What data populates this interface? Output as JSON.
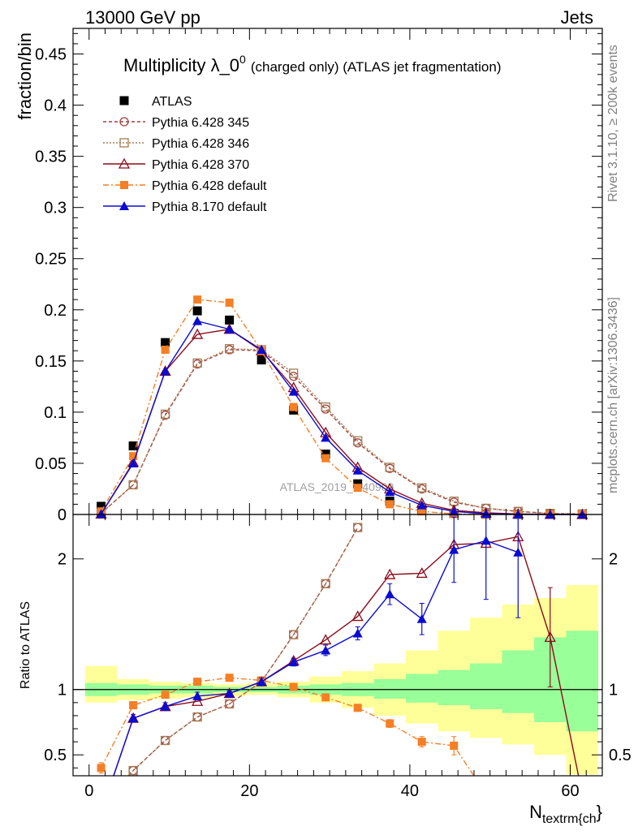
{
  "header": {
    "left": "13000 GeV pp",
    "right": "Jets"
  },
  "side_labels": {
    "rivet": "Rivet 3.1.10, ≥ 200k events",
    "mcplots": "mcplots.cern.ch [arXiv:1306.3436]"
  },
  "watermark": "ATLAS_2019_I740909",
  "chart_data": [
    {
      "type": "line",
      "panel": "main",
      "title": "Multiplicity λ_0⁰ (charged only) (ATLAS jet fragmentation)",
      "title_main": "Multiplicity λ_0",
      "title_sup": "0",
      "title_sub": "(charged only) (ATLAS jet fragmentation)",
      "ylabel": "fraction/bin",
      "xlim": [
        -2,
        64
      ],
      "ylim": [
        0,
        0.475
      ],
      "yticks": [
        0,
        0.05,
        0.1,
        0.15,
        0.2,
        0.25,
        0.3,
        0.35,
        0.4,
        0.45
      ],
      "ytick_labels": [
        "0",
        "0.05",
        "0.1",
        "0.15",
        "0.2",
        "0.25",
        "0.3",
        "0.35",
        "0.4",
        "0.45"
      ],
      "legend_position": "top-left",
      "x": [
        1.5,
        5.5,
        9.5,
        13.5,
        17.5,
        21.5,
        25.5,
        29.5,
        33.5,
        37.5,
        41.5,
        45.5,
        49.5,
        53.5,
        57.5,
        61.5
      ],
      "series": [
        {
          "name": "ATLAS",
          "color": "#000000",
          "marker": "square-filled",
          "values": [
            0.008,
            0.067,
            0.168,
            0.199,
            0.19,
            0.151,
            0.102,
            0.059,
            0.03,
            0.013,
            0.004,
            0.001,
            0.0003,
            0.0001,
            0.0,
            0.0
          ]
        },
        {
          "name": "Pythia 6.428 345",
          "color": "#a0413d",
          "marker": "circle-open",
          "dash": "4,3",
          "values": [
            0.001,
            0.029,
            0.097,
            0.147,
            0.161,
            0.16,
            0.135,
            0.103,
            0.07,
            0.045,
            0.025,
            0.012,
            0.006,
            0.003,
            0.001,
            0.0005
          ]
        },
        {
          "name": "Pythia 6.428 346",
          "color": "#a67c52",
          "marker": "square-open",
          "dash": "2,2",
          "values": [
            0.001,
            0.029,
            0.098,
            0.148,
            0.162,
            0.161,
            0.138,
            0.105,
            0.072,
            0.046,
            0.026,
            0.013,
            0.006,
            0.003,
            0.001,
            0.0005
          ]
        },
        {
          "name": "Pythia 6.428 370",
          "color": "#8b0a1a",
          "marker": "triangle-open",
          "values": [
            0.0005,
            0.051,
            0.14,
            0.176,
            0.181,
            0.16,
            0.124,
            0.08,
            0.046,
            0.025,
            0.011,
            0.004,
            0.0016,
            0.0005,
            0.0001,
            0.0
          ]
        },
        {
          "name": "Pythia 6.428 default",
          "color": "#f47f25",
          "marker": "square-filled",
          "dash": "7,3,2,3",
          "values": [
            0.003,
            0.057,
            0.161,
            0.21,
            0.207,
            0.16,
            0.105,
            0.055,
            0.026,
            0.01,
            0.003,
            0.0006,
            0.0001,
            0.0,
            0.0,
            0.0
          ]
        },
        {
          "name": "Pythia 8.170 default",
          "color": "#0b0bd1",
          "marker": "triangle-filled",
          "values": [
            0.0005,
            0.05,
            0.14,
            0.189,
            0.181,
            0.161,
            0.12,
            0.075,
            0.043,
            0.022,
            0.009,
            0.003,
            0.0007,
            0.0002,
            0.0,
            0.0
          ]
        }
      ]
    },
    {
      "type": "line",
      "panel": "ratio",
      "ylabel": "Ratio to ATLAS",
      "xlabel_main": "N",
      "xlabel_sub": "textrm{ch",
      "xlabel_tail": "}",
      "xlim": [
        -2,
        64
      ],
      "ylim": [
        0.34,
        2.34
      ],
      "xticks": [
        0,
        20,
        40,
        60
      ],
      "xtick_labels": [
        "0",
        "20",
        "40",
        "60"
      ],
      "yticks": [
        0.5,
        1,
        2
      ],
      "ytick_labels": [
        "0.5",
        "1",
        "2"
      ],
      "bins": [
        [
          -0.5,
          3.5
        ],
        [
          3.5,
          7.5
        ],
        [
          7.5,
          11.5
        ],
        [
          11.5,
          15.5
        ],
        [
          15.5,
          19.5
        ],
        [
          19.5,
          23.5
        ],
        [
          23.5,
          27.5
        ],
        [
          27.5,
          31.5
        ],
        [
          31.5,
          35.5
        ],
        [
          35.5,
          39.5
        ],
        [
          39.5,
          43.5
        ],
        [
          43.5,
          47.5
        ],
        [
          47.5,
          51.5
        ],
        [
          51.5,
          55.5
        ],
        [
          55.5,
          59.5
        ],
        [
          59.5,
          63.5
        ]
      ],
      "uncertainty_inner": [
        [
          0.95,
          1.05
        ],
        [
          0.96,
          1.04
        ],
        [
          0.97,
          1.03
        ],
        [
          0.97,
          1.03
        ],
        [
          0.98,
          1.02
        ],
        [
          0.98,
          1.02
        ],
        [
          0.97,
          1.03
        ],
        [
          0.96,
          1.04
        ],
        [
          0.95,
          1.05
        ],
        [
          0.93,
          1.08
        ],
        [
          0.9,
          1.12
        ],
        [
          0.88,
          1.15
        ],
        [
          0.85,
          1.2
        ],
        [
          0.82,
          1.3
        ],
        [
          0.75,
          1.4
        ],
        [
          0.68,
          1.45
        ]
      ],
      "uncertainty_outer": [
        [
          0.9,
          1.18
        ],
        [
          0.92,
          1.08
        ],
        [
          0.93,
          1.06
        ],
        [
          0.94,
          1.05
        ],
        [
          0.95,
          1.04
        ],
        [
          0.96,
          1.05
        ],
        [
          0.94,
          1.06
        ],
        [
          0.9,
          1.1
        ],
        [
          0.86,
          1.14
        ],
        [
          0.8,
          1.2
        ],
        [
          0.74,
          1.3
        ],
        [
          0.68,
          1.45
        ],
        [
          0.63,
          1.55
        ],
        [
          0.58,
          1.65
        ],
        [
          0.5,
          1.7
        ],
        [
          0.35,
          1.8
        ]
      ],
      "x": [
        1.5,
        5.5,
        9.5,
        13.5,
        17.5,
        21.5,
        25.5,
        29.5,
        33.5,
        37.5,
        41.5,
        45.5,
        49.5,
        53.5,
        57.5,
        61.5
      ],
      "series": [
        {
          "name": "Pythia 6.428 345",
          "color": "#a0413d",
          "marker": "circle-open",
          "dash": "4,3",
          "values": [
            0.12,
            0.38,
            0.61,
            0.79,
            0.89,
            1.06,
            1.42,
            1.81,
            2.24,
            null,
            null,
            null,
            null,
            null,
            null,
            null
          ]
        },
        {
          "name": "Pythia 6.428 346",
          "color": "#a67c52",
          "marker": "square-open",
          "dash": "2,2",
          "values": [
            0.12,
            0.38,
            0.61,
            0.79,
            0.89,
            1.06,
            1.42,
            1.81,
            2.24,
            null,
            null,
            null,
            null,
            null,
            null,
            null
          ]
        },
        {
          "name": "Pythia 6.428 370",
          "color": "#8b0a1a",
          "marker": "triangle-open",
          "values": [
            0.06,
            0.78,
            0.87,
            0.91,
            0.97,
            1.06,
            1.22,
            1.38,
            1.56,
            1.88,
            1.89,
            2.11,
            2.12,
            2.17,
            1.4,
            0.2
          ],
          "errors": [
            0,
            0,
            0,
            0,
            0,
            0,
            0,
            0,
            0,
            0,
            0,
            0,
            0,
            0,
            0.38,
            0
          ]
        },
        {
          "name": "Pythia 6.428 default",
          "color": "#f47f25",
          "marker": "square-filled",
          "dash": "7,3,2,3",
          "values": [
            0.4,
            0.88,
            0.96,
            1.06,
            1.09,
            1.07,
            1.02,
            0.94,
            0.86,
            0.74,
            0.6,
            0.57,
            0.2,
            null,
            null,
            null
          ],
          "errors": [
            0.04,
            0,
            0,
            0,
            0,
            0,
            0,
            0,
            0,
            0.03,
            0.04,
            0.07,
            0,
            0,
            0,
            0
          ]
        },
        {
          "name": "Pythia 8.170 default",
          "color": "#0b0bd1",
          "marker": "triangle-filled",
          "values": [
            0.06,
            0.78,
            0.87,
            0.95,
            0.97,
            1.06,
            1.21,
            1.3,
            1.43,
            1.73,
            1.54,
            2.07,
            2.14,
            2.05,
            null,
            null
          ],
          "errors": [
            0,
            0.03,
            0.03,
            0.03,
            0.02,
            0.03,
            0.03,
            0.04,
            0.05,
            0.08,
            0.12,
            0.25,
            0.45,
            0.5,
            0,
            0
          ]
        }
      ]
    }
  ]
}
